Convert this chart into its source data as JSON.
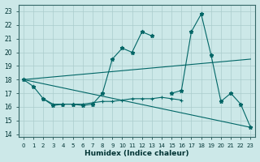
{
  "xlabel": "Humidex (Indice chaleur)",
  "background_color": "#cce8e8",
  "grid_color": "#aacccc",
  "line_color": "#006666",
  "xlim": [
    -0.5,
    23.5
  ],
  "ylim": [
    13.8,
    23.5
  ],
  "yticks": [
    14,
    15,
    16,
    17,
    18,
    19,
    20,
    21,
    22,
    23
  ],
  "xticks": [
    0,
    1,
    2,
    3,
    4,
    5,
    6,
    7,
    8,
    9,
    10,
    11,
    12,
    13,
    14,
    15,
    16,
    17,
    18,
    19,
    20,
    21,
    22,
    23
  ],
  "series_zigzag": {
    "x": [
      0,
      1,
      2,
      3,
      4,
      5,
      6,
      7,
      8,
      9,
      10,
      11,
      12,
      13,
      15,
      16,
      17,
      18,
      19,
      20,
      21,
      22,
      23
    ],
    "y": [
      18.0,
      17.5,
      16.6,
      16.1,
      16.2,
      16.2,
      16.1,
      16.2,
      17.0,
      19.5,
      20.3,
      20.0,
      21.5,
      21.2,
      17.0,
      17.2,
      21.5,
      22.8,
      19.8,
      16.4,
      17.0,
      16.2,
      14.5
    ]
  },
  "series_plus": {
    "x": [
      2,
      3,
      4,
      5,
      6,
      7,
      8,
      9,
      10,
      11,
      12,
      13,
      14,
      15,
      16
    ],
    "y": [
      16.6,
      16.2,
      16.2,
      16.2,
      16.2,
      16.3,
      16.4,
      16.4,
      16.5,
      16.6,
      16.6,
      16.6,
      16.7,
      16.6,
      16.5
    ]
  },
  "line_upper": {
    "x": [
      0,
      23
    ],
    "y": [
      18.0,
      19.5
    ]
  },
  "line_lower": {
    "x": [
      0,
      23
    ],
    "y": [
      18.0,
      14.5
    ]
  }
}
